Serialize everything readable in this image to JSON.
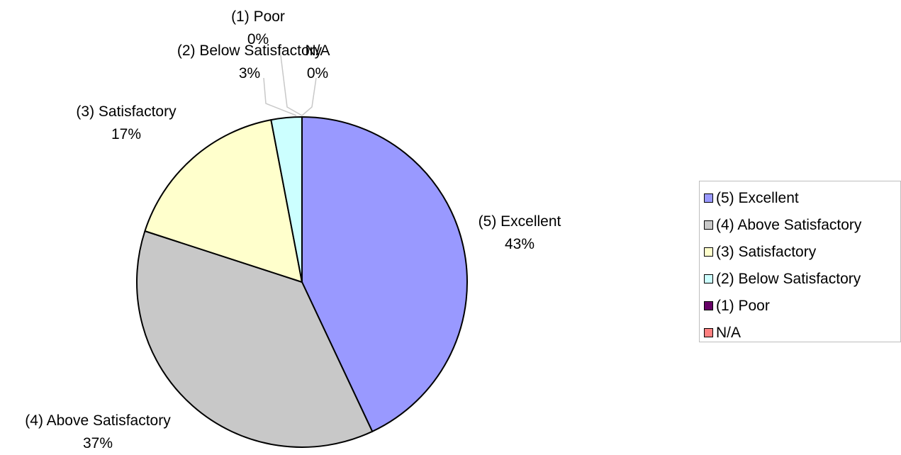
{
  "chart_data": {
    "type": "pie",
    "title": "",
    "labels": [
      "(5) Excellent",
      "(4) Above Satisfactory",
      "(3) Satisfactory",
      "(2) Below Satisfactory",
      "(1) Poor",
      "N/A"
    ],
    "values": [
      43,
      37,
      17,
      3,
      0,
      0
    ],
    "percent_labels": [
      "43%",
      "37%",
      "17%",
      "3%",
      "0%",
      "0%"
    ],
    "colors": [
      "#9999ff",
      "#c8c8c8",
      "#ffffcc",
      "#ccffff",
      "#660066",
      "#ff8080"
    ],
    "start_angle": "12 o'clock",
    "direction": "clockwise",
    "legend_position": "right"
  }
}
